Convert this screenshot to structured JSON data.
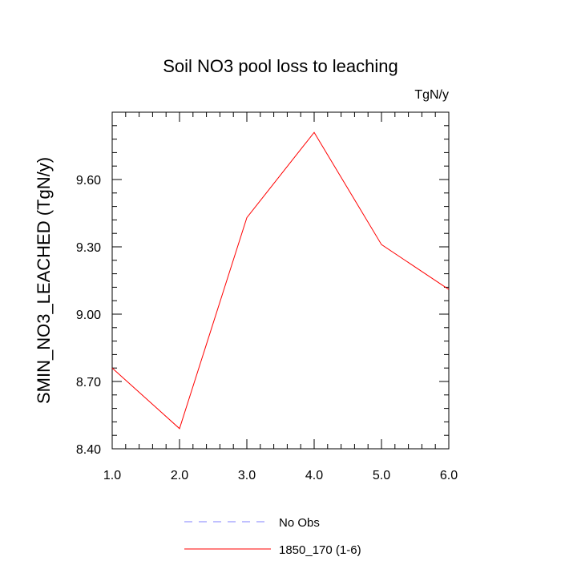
{
  "chart_data": {
    "type": "line",
    "title": "Soil NO3 pool loss to leaching",
    "units_label": "TgN/y",
    "xlabel": "",
    "ylabel": "SMIN_NO3_LEACHED  (TgN/y)",
    "xlim": [
      1.0,
      6.0
    ],
    "ylim": [
      8.4,
      9.9
    ],
    "x_ticks": [
      1.0,
      2.0,
      3.0,
      4.0,
      5.0,
      6.0
    ],
    "x_tick_labels": [
      "1.0",
      "2.0",
      "3.0",
      "4.0",
      "5.0",
      "6.0"
    ],
    "y_ticks": [
      8.4,
      8.7,
      9.0,
      9.3,
      9.6
    ],
    "y_tick_labels": [
      "8.40",
      "8.70",
      "9.00",
      "9.30",
      "9.60"
    ],
    "grid": false,
    "legend_position": "bottom",
    "series": [
      {
        "name": "No Obs",
        "color": "#8080ff",
        "dashed": true,
        "x": [],
        "y": []
      },
      {
        "name": "1850_170 (1-6)",
        "color": "#ff0000",
        "dashed": false,
        "x": [
          1.0,
          2.0,
          3.0,
          4.0,
          5.0,
          6.0
        ],
        "y": [
          8.76,
          8.49,
          9.43,
          9.81,
          9.31,
          9.11
        ]
      }
    ]
  }
}
